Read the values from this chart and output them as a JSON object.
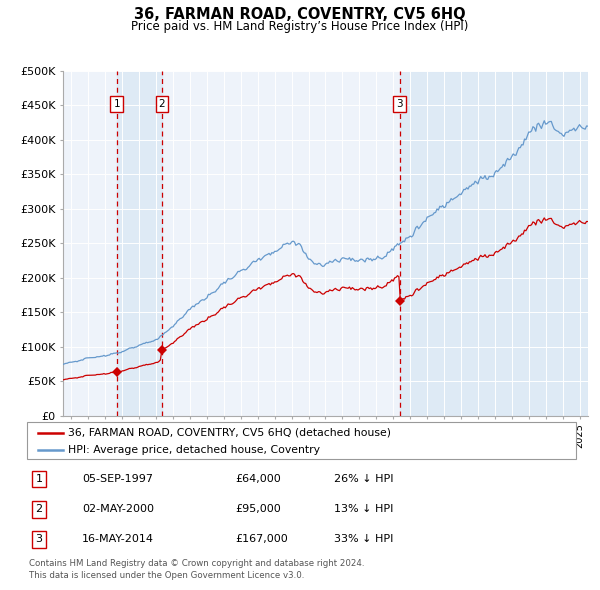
{
  "title": "36, FARMAN ROAD, COVENTRY, CV5 6HQ",
  "subtitle": "Price paid vs. HM Land Registry’s House Price Index (HPI)",
  "footer1": "Contains HM Land Registry data © Crown copyright and database right 2024.",
  "footer2": "This data is licensed under the Open Government Licence v3.0.",
  "legend_label_red": "36, FARMAN ROAD, COVENTRY, CV5 6HQ (detached house)",
  "legend_label_blue": "HPI: Average price, detached house, Coventry",
  "table": [
    {
      "num": 1,
      "date": "05-SEP-1997",
      "price": "£64,000",
      "pct": "26% ↓ HPI"
    },
    {
      "num": 2,
      "date": "02-MAY-2000",
      "price": "£95,000",
      "pct": "13% ↓ HPI"
    },
    {
      "num": 3,
      "date": "16-MAY-2014",
      "price": "£167,000",
      "pct": "33% ↓ HPI"
    }
  ],
  "sale_dates_year": [
    1997.67,
    2000.33,
    2014.37
  ],
  "sale_prices": [
    64000,
    95000,
    167000
  ],
  "ylim": [
    0,
    500000
  ],
  "yticks": [
    0,
    50000,
    100000,
    150000,
    200000,
    250000,
    300000,
    350000,
    400000,
    450000,
    500000
  ],
  "xlim_start": 1994.5,
  "xlim_end": 2025.5,
  "red_color": "#cc0000",
  "blue_color": "#6699cc",
  "grid_color": "#ffffff",
  "plot_bg": "#eef3fa",
  "shade_color": "#dce9f5"
}
